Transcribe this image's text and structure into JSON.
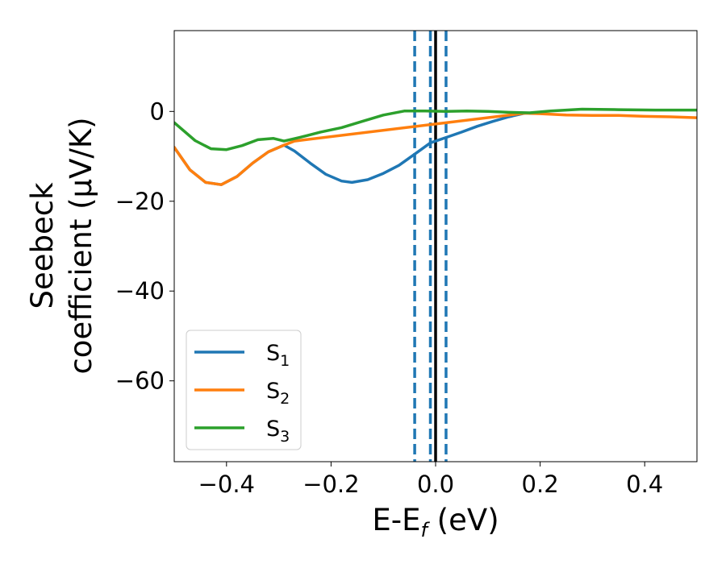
{
  "chart_data": {
    "type": "line",
    "title": "",
    "xlabel": "E-E",
    "xlabel_sub": "f",
    "xlabel_unit": " (eV)",
    "ylabel_line1": "Seebeck",
    "ylabel_line2": "coefficient  (μV/K)",
    "xlim": [
      -0.5,
      0.5
    ],
    "ylim": [
      -78,
      18
    ],
    "xticks": [
      -0.4,
      -0.2,
      0.0,
      0.2,
      0.4
    ],
    "xtick_labels": [
      "−0.4",
      "−0.2",
      "0.0",
      "0.2",
      "0.4"
    ],
    "yticks": [
      0,
      -20,
      -40,
      -60
    ],
    "ytick_labels": [
      "0",
      "−20",
      "−40",
      "−60"
    ],
    "grid": false,
    "legend_position": "lower-left",
    "vlines": [
      {
        "x": 0.0,
        "style": "solid",
        "color": "#000000"
      },
      {
        "x": -0.04,
        "style": "dashed",
        "color": "#1f77b4"
      },
      {
        "x": -0.01,
        "style": "dashed",
        "color": "#1f77b4"
      },
      {
        "x": 0.02,
        "style": "dashed",
        "color": "#1f77b4"
      }
    ],
    "series": [
      {
        "name": "S",
        "sub": "1",
        "color": "#1f77b4",
        "points": [
          [
            -0.5,
            -8
          ],
          [
            -0.47,
            -13
          ],
          [
            -0.44,
            -15.8
          ],
          [
            -0.41,
            -16.3
          ],
          [
            -0.38,
            -14.5
          ],
          [
            -0.35,
            -11.5
          ],
          [
            -0.32,
            -9
          ],
          [
            -0.29,
            -7.5
          ],
          [
            -0.27,
            -8.8
          ],
          [
            -0.24,
            -11.5
          ],
          [
            -0.21,
            -14
          ],
          [
            -0.18,
            -15.5
          ],
          [
            -0.16,
            -15.8
          ],
          [
            -0.13,
            -15.2
          ],
          [
            -0.1,
            -13.8
          ],
          [
            -0.07,
            -12
          ],
          [
            -0.04,
            -9.5
          ],
          [
            -0.01,
            -7
          ],
          [
            0.02,
            -5.8
          ],
          [
            0.05,
            -4.6
          ],
          [
            0.08,
            -3.3
          ],
          [
            0.11,
            -2.2
          ],
          [
            0.14,
            -1.2
          ],
          [
            0.17,
            -0.4
          ]
        ]
      },
      {
        "name": "S",
        "sub": "2",
        "color": "#ff7f0e",
        "points": [
          [
            -0.5,
            -8
          ],
          [
            -0.47,
            -13
          ],
          [
            -0.44,
            -15.8
          ],
          [
            -0.41,
            -16.3
          ],
          [
            -0.38,
            -14.5
          ],
          [
            -0.35,
            -11.5
          ],
          [
            -0.32,
            -9
          ],
          [
            -0.29,
            -7.5
          ],
          [
            -0.27,
            -6.6
          ],
          [
            0.17,
            -0.4
          ],
          [
            0.2,
            -0.5
          ],
          [
            0.25,
            -0.8
          ],
          [
            0.3,
            -0.9
          ],
          [
            0.35,
            -0.9
          ],
          [
            0.4,
            -1.1
          ],
          [
            0.45,
            -1.2
          ],
          [
            0.5,
            -1.4
          ]
        ]
      },
      {
        "name": "S",
        "sub": "3",
        "color": "#2ca02c",
        "points": [
          [
            -0.5,
            -2.5
          ],
          [
            -0.46,
            -6.5
          ],
          [
            -0.43,
            -8.3
          ],
          [
            -0.4,
            -8.5
          ],
          [
            -0.37,
            -7.6
          ],
          [
            -0.34,
            -6.3
          ],
          [
            -0.31,
            -6
          ],
          [
            -0.29,
            -6.6
          ],
          [
            -0.26,
            -5.8
          ],
          [
            -0.22,
            -4.6
          ],
          [
            -0.18,
            -3.6
          ],
          [
            -0.14,
            -2.2
          ],
          [
            -0.1,
            -0.8
          ],
          [
            -0.06,
            0.1
          ],
          [
            -0.02,
            0.1
          ],
          [
            0.02,
            0.0
          ],
          [
            0.06,
            0.1
          ],
          [
            0.1,
            0.0
          ],
          [
            0.14,
            -0.2
          ],
          [
            0.18,
            -0.3
          ],
          [
            0.22,
            0.1
          ],
          [
            0.28,
            0.5
          ],
          [
            0.35,
            0.4
          ],
          [
            0.42,
            0.3
          ],
          [
            0.5,
            0.3
          ]
        ]
      }
    ]
  }
}
